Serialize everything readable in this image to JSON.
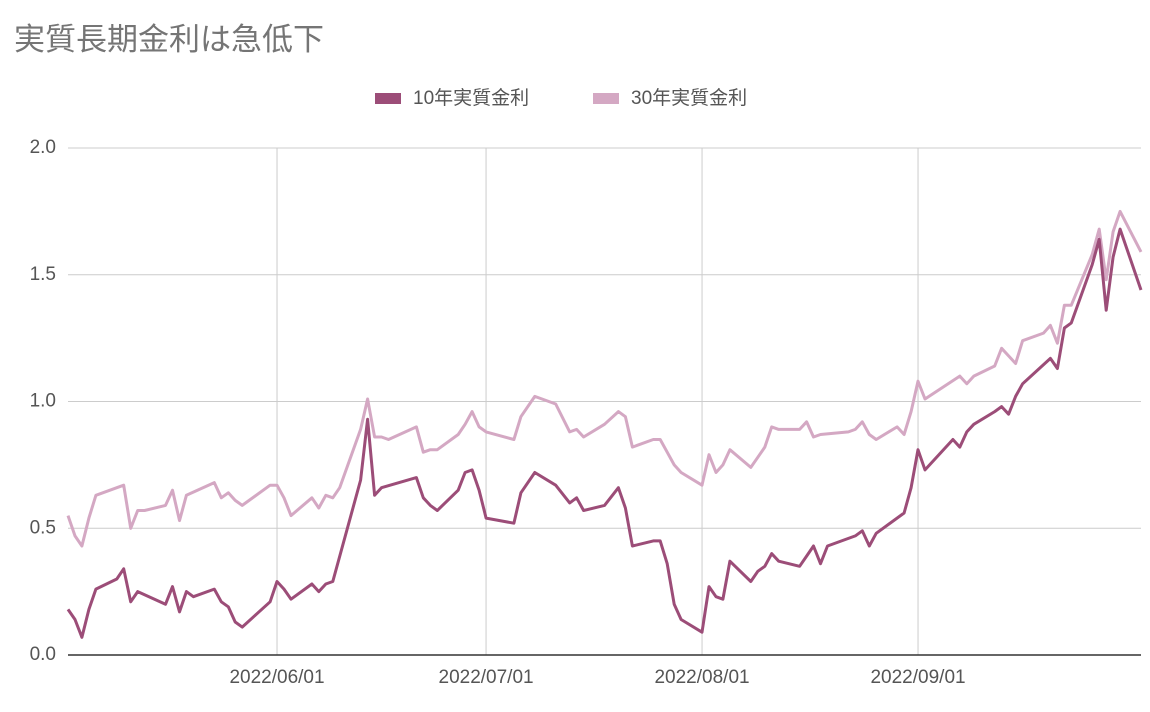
{
  "chart_data": {
    "type": "line",
    "title": "実質長期金利は急低下",
    "xlim": [
      "2022/05/02",
      "2022/10/03"
    ],
    "xticks": [
      "2022/06/01",
      "2022/07/01",
      "2022/08/01",
      "2022/09/01"
    ],
    "ylim": [
      0,
      2
    ],
    "yticks": [
      {
        "value": 0,
        "label": "0.0"
      },
      0.5,
      {
        "value": 1,
        "label": "1.0"
      },
      1.5,
      {
        "value": 2,
        "label": "2.0"
      }
    ],
    "grid": true,
    "legend": "top",
    "series": [
      {
        "name": "10年実質金利",
        "color": "#9c4d78",
        "x": [
          "2022/05/02",
          "2022/05/03",
          "2022/05/04",
          "2022/05/05",
          "2022/05/06",
          "2022/05/09",
          "2022/05/10",
          "2022/05/11",
          "2022/05/12",
          "2022/05/16",
          "2022/05/17",
          "2022/05/18",
          "2022/05/19",
          "2022/05/20",
          "2022/05/23",
          "2022/05/24",
          "2022/05/25",
          "2022/05/26",
          "2022/05/27",
          "2022/05/31",
          "2022/06/01",
          "2022/06/02",
          "2022/06/03",
          "2022/06/06",
          "2022/06/07",
          "2022/06/08",
          "2022/06/09",
          "2022/06/13",
          "2022/06/14",
          "2022/06/15",
          "2022/06/16",
          "2022/06/21",
          "2022/06/22",
          "2022/06/23",
          "2022/06/24",
          "2022/06/27",
          "2022/06/28",
          "2022/06/29",
          "2022/06/30",
          "2022/07/01",
          "2022/07/05",
          "2022/07/06",
          "2022/07/08",
          "2022/07/11",
          "2022/07/13",
          "2022/07/14",
          "2022/07/15",
          "2022/07/18",
          "2022/07/20",
          "2022/07/21",
          "2022/07/22",
          "2022/07/25",
          "2022/07/26",
          "2022/07/27",
          "2022/07/28",
          "2022/07/29",
          "2022/08/01",
          "2022/08/02",
          "2022/08/03",
          "2022/08/04",
          "2022/08/05",
          "2022/08/08",
          "2022/08/09",
          "2022/08/10",
          "2022/08/11",
          "2022/08/12",
          "2022/08/15",
          "2022/08/16",
          "2022/08/17",
          "2022/08/18",
          "2022/08/19",
          "2022/08/23",
          "2022/08/24",
          "2022/08/25",
          "2022/08/26",
          "2022/08/30",
          "2022/08/31",
          "2022/09/01",
          "2022/09/02",
          "2022/09/06",
          "2022/09/07",
          "2022/09/08",
          "2022/09/09",
          "2022/09/12",
          "2022/09/13",
          "2022/09/14",
          "2022/09/15",
          "2022/09/16",
          "2022/09/20",
          "2022/09/21",
          "2022/09/22",
          "2022/09/23",
          "2022/09/26",
          "2022/09/27",
          "2022/09/28",
          "2022/09/29",
          "2022/09/30",
          "2022/10/03"
        ],
        "values": [
          0.18,
          0.14,
          0.07,
          0.18,
          0.26,
          0.3,
          0.34,
          0.21,
          0.25,
          0.2,
          0.27,
          0.17,
          0.25,
          0.23,
          0.26,
          0.21,
          0.19,
          0.13,
          0.11,
          0.21,
          0.29,
          0.26,
          0.22,
          0.28,
          0.25,
          0.28,
          0.29,
          0.69,
          0.93,
          0.63,
          0.66,
          0.7,
          0.62,
          0.59,
          0.57,
          0.65,
          0.72,
          0.73,
          0.65,
          0.54,
          0.52,
          0.64,
          0.72,
          0.67,
          0.6,
          0.62,
          0.57,
          0.59,
          0.66,
          0.58,
          0.43,
          0.45,
          0.45,
          0.36,
          0.2,
          0.14,
          0.09,
          0.27,
          0.23,
          0.22,
          0.37,
          0.29,
          0.33,
          0.35,
          0.4,
          0.37,
          0.35,
          0.39,
          0.43,
          0.36,
          0.43,
          0.47,
          0.49,
          0.43,
          0.48,
          0.56,
          0.66,
          0.81,
          0.73,
          0.85,
          0.82,
          0.88,
          0.91,
          0.96,
          0.98,
          0.95,
          1.02,
          1.07,
          1.17,
          1.13,
          1.29,
          1.31,
          1.54,
          1.64,
          1.36,
          1.57,
          1.68,
          1.44
        ]
      },
      {
        "name": "30年実質金利",
        "color": "#d4a8c3",
        "x": [
          "2022/05/02",
          "2022/05/03",
          "2022/05/04",
          "2022/05/05",
          "2022/05/06",
          "2022/05/09",
          "2022/05/10",
          "2022/05/11",
          "2022/05/12",
          "2022/05/13",
          "2022/05/16",
          "2022/05/17",
          "2022/05/18",
          "2022/05/19",
          "2022/05/23",
          "2022/05/24",
          "2022/05/25",
          "2022/05/26",
          "2022/05/27",
          "2022/05/31",
          "2022/06/01",
          "2022/06/02",
          "2022/06/03",
          "2022/06/06",
          "2022/06/07",
          "2022/06/08",
          "2022/06/09",
          "2022/06/10",
          "2022/06/13",
          "2022/06/14",
          "2022/06/15",
          "2022/06/16",
          "2022/06/17",
          "2022/06/21",
          "2022/06/22",
          "2022/06/23",
          "2022/06/24",
          "2022/06/27",
          "2022/06/28",
          "2022/06/29",
          "2022/06/30",
          "2022/07/01",
          "2022/07/05",
          "2022/07/06",
          "2022/07/08",
          "2022/07/11",
          "2022/07/13",
          "2022/07/14",
          "2022/07/15",
          "2022/07/18",
          "2022/07/20",
          "2022/07/21",
          "2022/07/22",
          "2022/07/25",
          "2022/07/26",
          "2022/07/27",
          "2022/07/28",
          "2022/07/29",
          "2022/08/01",
          "2022/08/02",
          "2022/08/03",
          "2022/08/04",
          "2022/08/05",
          "2022/08/08",
          "2022/08/09",
          "2022/08/10",
          "2022/08/11",
          "2022/08/12",
          "2022/08/15",
          "2022/08/16",
          "2022/08/17",
          "2022/08/18",
          "2022/08/22",
          "2022/08/23",
          "2022/08/24",
          "2022/08/25",
          "2022/08/26",
          "2022/08/29",
          "2022/08/30",
          "2022/08/31",
          "2022/09/01",
          "2022/09/02",
          "2022/09/07",
          "2022/09/08",
          "2022/09/09",
          "2022/09/12",
          "2022/09/13",
          "2022/09/14",
          "2022/09/15",
          "2022/09/16",
          "2022/09/19",
          "2022/09/20",
          "2022/09/21",
          "2022/09/22",
          "2022/09/23",
          "2022/09/26",
          "2022/09/27",
          "2022/09/28",
          "2022/09/29",
          "2022/09/30",
          "2022/10/03"
        ],
        "values": [
          0.55,
          0.47,
          0.43,
          0.54,
          0.63,
          0.66,
          0.67,
          0.5,
          0.57,
          0.57,
          0.59,
          0.65,
          0.53,
          0.63,
          0.68,
          0.62,
          0.64,
          0.61,
          0.59,
          0.67,
          0.67,
          0.62,
          0.55,
          0.62,
          0.58,
          0.63,
          0.62,
          0.66,
          0.89,
          1.01,
          0.86,
          0.86,
          0.85,
          0.9,
          0.8,
          0.81,
          0.81,
          0.87,
          0.91,
          0.96,
          0.9,
          0.88,
          0.85,
          0.94,
          1.02,
          0.99,
          0.88,
          0.89,
          0.86,
          0.91,
          0.96,
          0.94,
          0.82,
          0.85,
          0.85,
          0.8,
          0.75,
          0.72,
          0.67,
          0.79,
          0.72,
          0.75,
          0.81,
          0.74,
          0.78,
          0.82,
          0.9,
          0.89,
          0.89,
          0.92,
          0.86,
          0.87,
          0.88,
          0.89,
          0.92,
          0.87,
          0.85,
          0.9,
          0.87,
          0.96,
          1.08,
          1.01,
          1.1,
          1.07,
          1.1,
          1.14,
          1.21,
          1.18,
          1.15,
          1.24,
          1.27,
          1.3,
          1.23,
          1.38,
          1.38,
          1.58,
          1.68,
          1.48,
          1.67,
          1.75,
          1.59
        ]
      }
    ]
  }
}
